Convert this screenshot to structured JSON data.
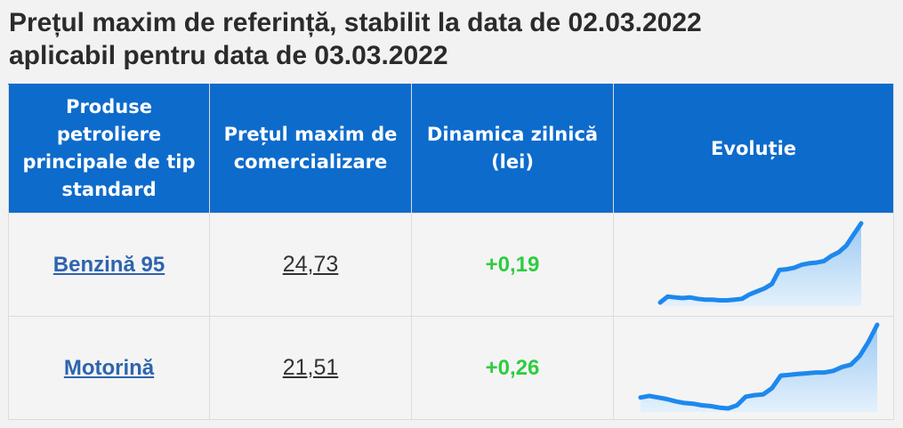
{
  "page": {
    "title_line1": "Prețul maxim de referință, stabilit la data de 02.03.2022",
    "title_line2": "aplicabil pentru data de 03.03.2022"
  },
  "table": {
    "headers": [
      "Produse petroliere principale de tip standard",
      "Prețul maxim de comercializare",
      "Dinamica zilnică (lei)",
      "Evoluție"
    ],
    "rows": [
      {
        "product": "Benzină 95",
        "price": "24,73",
        "change": "+0,19",
        "trend": [
          12.9,
          13.7,
          13.6,
          13.5,
          13.6,
          13.4,
          13.3,
          13.3,
          13.2,
          13.2,
          13.3,
          13.4,
          14.0,
          14.4,
          14.8,
          15.4,
          17.3,
          17.4,
          17.6,
          18.0,
          18.2,
          18.3,
          18.5,
          19.2,
          19.7,
          20.6,
          22.1,
          23.6
        ]
      },
      {
        "product": "Motorină",
        "price": "21,51",
        "change": "+0,26",
        "trend": [
          10.4,
          10.6,
          10.4,
          10.2,
          9.9,
          9.7,
          9.6,
          9.4,
          9.3,
          9.1,
          9.0,
          9.4,
          10.5,
          10.7,
          10.8,
          11.6,
          13.2,
          13.3,
          13.4,
          13.5,
          13.6,
          13.6,
          13.8,
          14.3,
          14.6,
          15.7,
          17.5,
          19.7
        ]
      }
    ]
  },
  "colors": {
    "header_bg": "#0d6bcc",
    "positive_change": "#2ecc40",
    "product_link": "#2e64ad",
    "spark_line": "#1e88ee",
    "spark_fill_top": "#9ccaf2",
    "spark_fill_bottom": "#e4f1fc"
  }
}
